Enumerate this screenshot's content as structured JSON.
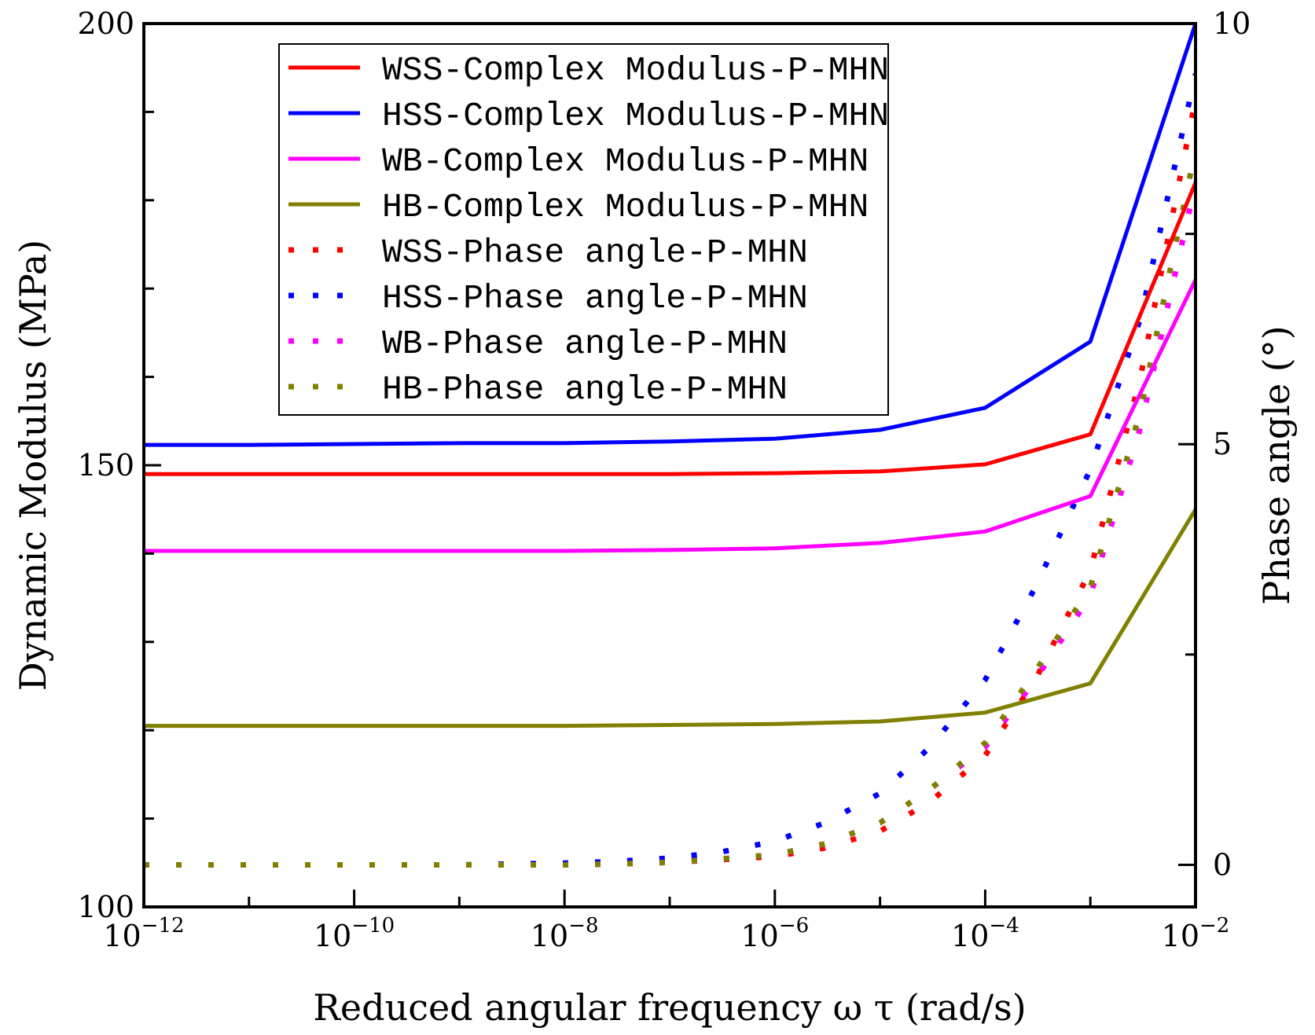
{
  "chart_data": {
    "type": "line",
    "xlabel": "Reduced angular frequency ω τ (rad/s)",
    "ylabel_left": "Dynamic Modulus (MPa)",
    "ylabel_right": "Phase angle (°)",
    "x_scale": "log",
    "x_ticks": [
      {
        "value": 1e-12,
        "base": "10",
        "exp": "−12"
      },
      {
        "value": 1e-10,
        "base": "10",
        "exp": "−10"
      },
      {
        "value": 1e-08,
        "base": "10",
        "exp": "−8"
      },
      {
        "value": 1e-06,
        "base": "10",
        "exp": "−6"
      },
      {
        "value": 0.0001,
        "base": "10",
        "exp": "−4"
      },
      {
        "value": 0.01,
        "base": "10",
        "exp": "−2"
      }
    ],
    "xlim": [
      1e-12,
      0.01
    ],
    "ylim_left": [
      100,
      200
    ],
    "y_ticks_left": [
      "100",
      "150",
      "200"
    ],
    "ylim_right": [
      -0.5,
      10
    ],
    "y_ticks_right": [
      "0",
      "5",
      "10"
    ],
    "grid": false,
    "legend_position": "top-left",
    "modulus_x": [
      1e-12,
      1e-11,
      1e-10,
      1e-09,
      1e-08,
      1e-07,
      1e-06,
      1e-05,
      0.0001,
      0.001,
      0.01
    ],
    "phase_x": [
      1e-12,
      1e-11,
      1e-10,
      1e-09,
      1e-08,
      3e-08,
      1e-07,
      3e-07,
      1e-06,
      3e-06,
      1e-05,
      3e-05,
      0.0001,
      0.0003,
      0.001,
      0.003,
      0.01
    ],
    "series": [
      {
        "name": "WSS-Complex Modulus-P-MHN",
        "axis": "left",
        "style": "solid",
        "color": "#ff0000",
        "values": [
          149,
          149,
          149,
          149,
          149,
          149,
          149.1,
          149.3,
          150.1,
          153.5,
          182
        ]
      },
      {
        "name": "HSS-Complex Modulus-P-MHN",
        "axis": "left",
        "style": "solid",
        "color": "#0000ff",
        "values": [
          152.3,
          152.3,
          152.4,
          152.5,
          152.5,
          152.7,
          153,
          154,
          156.5,
          164,
          200
        ]
      },
      {
        "name": "WB-Complex Modulus-P-MHN",
        "axis": "left",
        "style": "solid",
        "color": "#ff00ff",
        "values": [
          140.3,
          140.3,
          140.3,
          140.3,
          140.3,
          140.4,
          140.6,
          141.2,
          142.5,
          146.5,
          171
        ]
      },
      {
        "name": "HB-Complex Modulus-P-MHN",
        "axis": "left",
        "style": "solid",
        "color": "#808000",
        "values": [
          120.5,
          120.5,
          120.5,
          120.5,
          120.5,
          120.6,
          120.7,
          121,
          122,
          125.3,
          145
        ]
      },
      {
        "name": "WSS-Phase angle-P-MHN",
        "axis": "right",
        "style": "dotted",
        "color": "#ff0000",
        "values": [
          0,
          0,
          0,
          0,
          0,
          0.01,
          0.03,
          0.06,
          0.1,
          0.2,
          0.4,
          0.75,
          1.3,
          2.2,
          3.5,
          5.8,
          9.1
        ]
      },
      {
        "name": "HSS-Phase angle-P-MHN",
        "axis": "right",
        "style": "dotted",
        "color": "#0000ff",
        "values": [
          0,
          0,
          0,
          0,
          0.02,
          0.04,
          0.08,
          0.15,
          0.28,
          0.5,
          0.85,
          1.4,
          2.2,
          3.3,
          4.7,
          6.5,
          9.4
        ]
      },
      {
        "name": "WB-Phase angle-P-MHN",
        "axis": "right",
        "style": "dotted",
        "color": "#ff00ff",
        "values": [
          0,
          0,
          0,
          0,
          0,
          0.01,
          0.03,
          0.07,
          0.12,
          0.25,
          0.5,
          0.9,
          1.4,
          2.2,
          3.2,
          5.2,
          8.1
        ]
      },
      {
        "name": "HB-Phase angle-P-MHN",
        "axis": "right",
        "style": "dotted",
        "color": "#808000",
        "values": [
          0,
          0,
          0,
          0,
          0,
          0.01,
          0.03,
          0.07,
          0.12,
          0.25,
          0.5,
          0.9,
          1.45,
          2.3,
          3.3,
          5.4,
          8.5
        ]
      }
    ]
  }
}
